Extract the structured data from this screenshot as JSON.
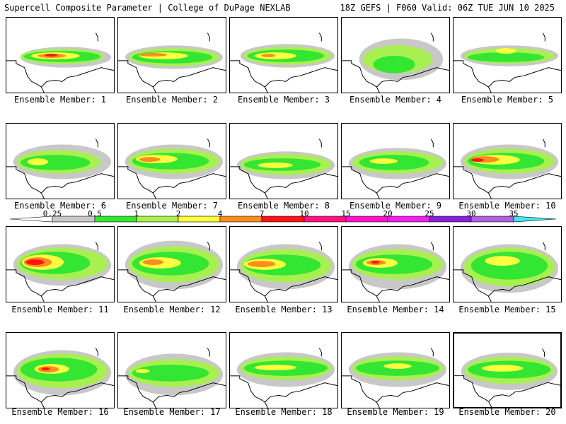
{
  "header": {
    "title": "Supercell Composite Parameter | College of DuPage NEXLAB",
    "run_info": "18Z GEFS | F060 Valid: 06Z TUE JUN 10 2025"
  },
  "colorbar": {
    "labels": [
      "0.25",
      "0.5",
      "1",
      "2",
      "4",
      "7",
      "10",
      "15",
      "20",
      "25",
      "30",
      "35"
    ],
    "colors": [
      "#ffffff",
      "#c8c8c8",
      "#32e632",
      "#a8f050",
      "#ffff40",
      "#ff8c1e",
      "#ff1414",
      "#ff1480",
      "#ff14c8",
      "#ee22ee",
      "#8820d8",
      "#b060e0",
      "#40e8f0"
    ]
  },
  "members": [
    {
      "caption": "Ensemble Member: 1"
    },
    {
      "caption": "Ensemble Member: 2"
    },
    {
      "caption": "Ensemble Member: 3"
    },
    {
      "caption": "Ensemble Member: 4"
    },
    {
      "caption": "Ensemble Member: 5"
    },
    {
      "caption": "Ensemble Member: 6"
    },
    {
      "caption": "Ensemble Member: 7"
    },
    {
      "caption": "Ensemble Member: 8"
    },
    {
      "caption": "Ensemble Member: 9"
    },
    {
      "caption": "Ensemble Member: 10"
    },
    {
      "caption": "Ensemble Member: 11"
    },
    {
      "caption": "Ensemble Member: 12"
    },
    {
      "caption": "Ensemble Member: 13"
    },
    {
      "caption": "Ensemble Member: 14"
    },
    {
      "caption": "Ensemble Member: 15"
    },
    {
      "caption": "Ensemble Member: 16"
    },
    {
      "caption": "Ensemble Member: 17"
    },
    {
      "caption": "Ensemble Member: 18"
    },
    {
      "caption": "Ensemble Member: 19"
    },
    {
      "caption": "Ensemble Member: 20"
    }
  ]
}
